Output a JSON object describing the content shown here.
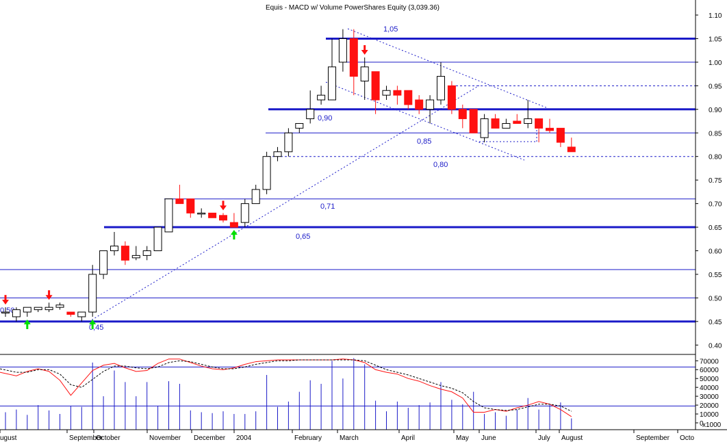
{
  "title": "Equis - MACD w/ Volume  PowerShares Equity (3,039.36)",
  "chart_data": [
    {
      "type": "candlestick",
      "panel": "price",
      "grid": false,
      "y_axis_position": "right",
      "ylim": [
        0.38,
        1.12
      ],
      "y_ticks": [
        "1.10",
        "1.05",
        "1.00",
        "0.95",
        "0.90",
        "0.85",
        "0.80",
        "0.75",
        "0.70",
        "0.65",
        "0.60",
        "0.55",
        "0.50",
        "0.45",
        "0.40"
      ],
      "x_ticks": [
        "ugust",
        "September",
        "October",
        "November",
        "December",
        "2004",
        "February",
        "March",
        "April",
        "May",
        "June",
        "July",
        "August",
        "September",
        "Octo"
      ],
      "candles": [
        {
          "o": 0.47,
          "h": 0.48,
          "l": 0.46,
          "c": 0.47
        },
        {
          "o": 0.46,
          "h": 0.48,
          "l": 0.45,
          "c": 0.475
        },
        {
          "o": 0.47,
          "h": 0.48,
          "l": 0.46,
          "c": 0.48
        },
        {
          "o": 0.475,
          "h": 0.48,
          "l": 0.47,
          "c": 0.48
        },
        {
          "o": 0.475,
          "h": 0.49,
          "l": 0.47,
          "c": 0.48
        },
        {
          "o": 0.48,
          "h": 0.49,
          "l": 0.475,
          "c": 0.485
        },
        {
          "o": 0.47,
          "h": 0.47,
          "l": 0.46,
          "c": 0.465
        },
        {
          "o": 0.46,
          "h": 0.47,
          "l": 0.45,
          "c": 0.47
        },
        {
          "o": 0.47,
          "h": 0.57,
          "l": 0.46,
          "c": 0.55
        },
        {
          "o": 0.55,
          "h": 0.6,
          "l": 0.54,
          "c": 0.6
        },
        {
          "o": 0.6,
          "h": 0.64,
          "l": 0.59,
          "c": 0.61
        },
        {
          "o": 0.61,
          "h": 0.62,
          "l": 0.57,
          "c": 0.58
        },
        {
          "o": 0.585,
          "h": 0.61,
          "l": 0.58,
          "c": 0.59
        },
        {
          "o": 0.59,
          "h": 0.61,
          "l": 0.58,
          "c": 0.6
        },
        {
          "o": 0.6,
          "h": 0.65,
          "l": 0.6,
          "c": 0.65
        },
        {
          "o": 0.64,
          "h": 0.71,
          "l": 0.64,
          "c": 0.71
        },
        {
          "o": 0.71,
          "h": 0.74,
          "l": 0.7,
          "c": 0.7
        },
        {
          "o": 0.71,
          "h": 0.71,
          "l": 0.67,
          "c": 0.68
        },
        {
          "o": 0.68,
          "h": 0.69,
          "l": 0.67,
          "c": 0.68
        },
        {
          "o": 0.68,
          "h": 0.68,
          "l": 0.67,
          "c": 0.67
        },
        {
          "o": 0.675,
          "h": 0.68,
          "l": 0.66,
          "c": 0.665
        },
        {
          "o": 0.66,
          "h": 0.68,
          "l": 0.65,
          "c": 0.65
        },
        {
          "o": 0.66,
          "h": 0.71,
          "l": 0.65,
          "c": 0.7
        },
        {
          "o": 0.7,
          "h": 0.74,
          "l": 0.7,
          "c": 0.73
        },
        {
          "o": 0.73,
          "h": 0.81,
          "l": 0.72,
          "c": 0.8
        },
        {
          "o": 0.8,
          "h": 0.82,
          "l": 0.79,
          "c": 0.81
        },
        {
          "o": 0.81,
          "h": 0.86,
          "l": 0.8,
          "c": 0.85
        },
        {
          "o": 0.86,
          "h": 0.87,
          "l": 0.85,
          "c": 0.87
        },
        {
          "o": 0.88,
          "h": 0.94,
          "l": 0.87,
          "c": 0.9
        },
        {
          "o": 0.92,
          "h": 0.95,
          "l": 0.91,
          "c": 0.93
        },
        {
          "o": 0.92,
          "h": 1.05,
          "l": 0.92,
          "c": 0.99
        },
        {
          "o": 1.0,
          "h": 1.07,
          "l": 0.98,
          "c": 1.05
        },
        {
          "o": 1.05,
          "h": 1.07,
          "l": 0.93,
          "c": 0.97
        },
        {
          "o": 0.96,
          "h": 1.01,
          "l": 0.92,
          "c": 0.99
        },
        {
          "o": 0.98,
          "h": 0.98,
          "l": 0.89,
          "c": 0.92
        },
        {
          "o": 0.93,
          "h": 0.95,
          "l": 0.92,
          "c": 0.94
        },
        {
          "o": 0.94,
          "h": 0.95,
          "l": 0.91,
          "c": 0.93
        },
        {
          "o": 0.94,
          "h": 0.94,
          "l": 0.9,
          "c": 0.91
        },
        {
          "o": 0.92,
          "h": 0.93,
          "l": 0.89,
          "c": 0.9
        },
        {
          "o": 0.9,
          "h": 0.93,
          "l": 0.87,
          "c": 0.92
        },
        {
          "o": 0.92,
          "h": 1.0,
          "l": 0.91,
          "c": 0.97
        },
        {
          "o": 0.95,
          "h": 0.96,
          "l": 0.89,
          "c": 0.9
        },
        {
          "o": 0.9,
          "h": 0.91,
          "l": 0.86,
          "c": 0.88
        },
        {
          "o": 0.9,
          "h": 0.9,
          "l": 0.85,
          "c": 0.85
        },
        {
          "o": 0.84,
          "h": 0.89,
          "l": 0.83,
          "c": 0.88
        },
        {
          "o": 0.88,
          "h": 0.89,
          "l": 0.86,
          "c": 0.86
        },
        {
          "o": 0.86,
          "h": 0.88,
          "l": 0.86,
          "c": 0.87
        },
        {
          "o": 0.875,
          "h": 0.89,
          "l": 0.87,
          "c": 0.87
        },
        {
          "o": 0.87,
          "h": 0.92,
          "l": 0.86,
          "c": 0.88
        },
        {
          "o": 0.88,
          "h": 0.88,
          "l": 0.83,
          "c": 0.86
        },
        {
          "o": 0.86,
          "h": 0.88,
          "l": 0.85,
          "c": 0.855
        },
        {
          "o": 0.86,
          "h": 0.86,
          "l": 0.82,
          "c": 0.83
        },
        {
          "o": 0.82,
          "h": 0.84,
          "l": 0.81,
          "c": 0.81
        }
      ],
      "horizontal_levels": [
        {
          "value": 1.05,
          "label": "1,05",
          "thick": true,
          "style": "solid"
        },
        {
          "value": 1.0,
          "label": "",
          "thick": false,
          "style": "solid"
        },
        {
          "value": 0.95,
          "label": "",
          "thick": false,
          "style": "dashed"
        },
        {
          "value": 0.9,
          "label": "0,90",
          "thick": true,
          "style": "solid"
        },
        {
          "value": 0.85,
          "label": "0,85",
          "thick": false,
          "style": "solid"
        },
        {
          "value": 0.8,
          "label": "0,80",
          "thick": false,
          "style": "dashed"
        },
        {
          "value": 0.71,
          "label": "0,71",
          "thick": false,
          "style": "solid"
        },
        {
          "value": 0.65,
          "label": "0,65",
          "thick": true,
          "style": "solid"
        },
        {
          "value": 0.56,
          "label": "",
          "thick": false,
          "style": "solid"
        },
        {
          "value": 0.5,
          "label": "0,50",
          "thick": false,
          "style": "solid"
        },
        {
          "value": 0.45,
          "label": "0,45",
          "thick": true,
          "style": "solid"
        }
      ],
      "down_arrows": [
        0,
        4,
        20,
        33
      ],
      "up_arrows": [
        2,
        8,
        21
      ]
    },
    {
      "type": "line+bar",
      "panel": "indicator",
      "y_axis_position": "right",
      "ylim": [
        0,
        75000
      ],
      "y_ticks": [
        "70000",
        "60000",
        "50000",
        "40000",
        "30000",
        "20000",
        "10000",
        "0"
      ],
      "axis_footer": "x1000",
      "reference_lines": [
        63000,
        19000
      ],
      "volume_bars": [
        12000,
        15000,
        9000,
        20000,
        14000,
        10000,
        19000,
        18000,
        68000,
        30000,
        59000,
        46000,
        30000,
        46000,
        19000,
        47000,
        44000,
        14000,
        12000,
        11000,
        13000,
        10000,
        10000,
        13000,
        54000,
        18000,
        24000,
        35000,
        48000,
        44000,
        70000,
        50000,
        73000,
        66000,
        25000,
        13000,
        24000,
        17000,
        20000,
        23000,
        46000,
        26000,
        21000,
        35000,
        10000,
        12000,
        8000,
        15000,
        28000,
        15000,
        20000,
        23000,
        5000
      ],
      "series": [
        {
          "values": [
            57000,
            53000,
            58000,
            61000,
            58000,
            48000,
            31000,
            45000,
            59000,
            65000,
            67000,
            62000,
            58000,
            59000,
            67000,
            72000,
            72000,
            68000,
            64000,
            61000,
            60000,
            62000,
            66000,
            69000,
            70000,
            71000,
            71000,
            71000,
            71000,
            71000,
            71000,
            72000,
            71000,
            68000,
            60000,
            57000,
            55000,
            50000,
            47000,
            42000,
            38000,
            35000,
            28000,
            12000,
            12000,
            15000,
            13000,
            17000,
            20000,
            24000,
            21000,
            15000,
            7000
          ]
        },
        {
          "values": [
            61000,
            57000,
            57000,
            60000,
            60000,
            55000,
            43000,
            40000,
            49000,
            58000,
            64000,
            64000,
            62000,
            61000,
            63000,
            68000,
            70000,
            69000,
            66000,
            63000,
            61000,
            61000,
            63000,
            66000,
            68000,
            70000,
            70000,
            71000,
            71000,
            71000,
            71000,
            71000,
            71000,
            70000,
            65000,
            60000,
            57000,
            54000,
            50000,
            46000,
            42000,
            39000,
            34000,
            24000,
            17000,
            15000,
            14000,
            15000,
            18000,
            21000,
            21000,
            19000,
            13000
          ]
        }
      ]
    }
  ]
}
